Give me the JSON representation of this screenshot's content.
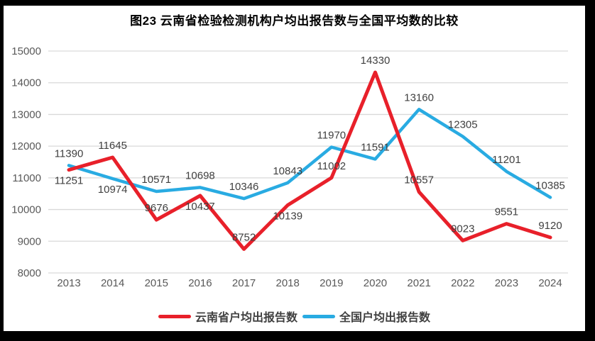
{
  "title": "图23 云南省检验检测机构户均出报告数与全国平均数的比较",
  "chart_data": {
    "type": "line",
    "title": "图23 云南省检验检测机构户均出报告数与全国平均数的比较",
    "categories": [
      "2013",
      "2014",
      "2015",
      "2016",
      "2017",
      "2018",
      "2019",
      "2020",
      "2021",
      "2022",
      "2023",
      "2024"
    ],
    "series": [
      {
        "name": "云南省户均出报告数",
        "color": "#e8202a",
        "values": [
          11251,
          11645,
          9676,
          10437,
          8752,
          10139,
          11002,
          14330,
          10557,
          9023,
          9551,
          9120
        ],
        "label_placement": [
          "below",
          "above",
          "above",
          "below",
          "above",
          "below",
          "above",
          "above",
          "above",
          "above",
          "above",
          "above"
        ]
      },
      {
        "name": "全国户均出报告数",
        "color": "#29abe2",
        "values": [
          11390,
          10974,
          10571,
          10698,
          10346,
          10843,
          11970,
          11591,
          13160,
          12305,
          11201,
          10385
        ],
        "label_placement": [
          "above",
          "below",
          "above",
          "above",
          "above",
          "above",
          "above",
          "above",
          "above",
          "above",
          "above",
          "above"
        ]
      }
    ],
    "ylim": [
      8000,
      15000
    ],
    "yticks": [
      8000,
      9000,
      10000,
      11000,
      12000,
      13000,
      14000,
      15000
    ],
    "grid": "horizontal",
    "data_labels": true,
    "legend_position": "bottom"
  },
  "styles": {
    "frame_color": "#000000",
    "background": "#ffffff",
    "grid_color": "#d9d9d9",
    "axis_label_color": "#595959",
    "data_label_color": "#404040",
    "title_color": "#000000"
  }
}
